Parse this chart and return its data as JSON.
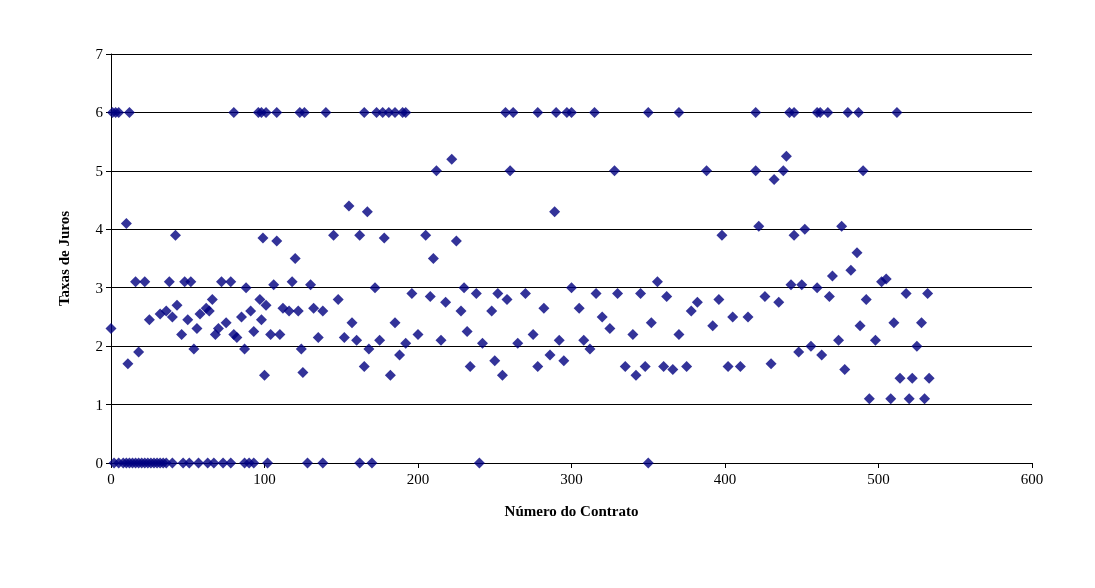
{
  "chart_data": {
    "type": "scatter",
    "xlabel": "Número do Contrato",
    "ylabel": "Taxas de Juros",
    "xlim": [
      0,
      600
    ],
    "xticks": [
      0,
      100,
      200,
      300,
      400,
      500,
      600
    ],
    "ylim": [
      0,
      7
    ],
    "yticks": [
      0,
      1,
      2,
      3,
      4,
      5,
      6,
      7
    ],
    "grid": "y",
    "marker": "diamond",
    "series": [
      {
        "color": "#000080",
        "x": [
          1,
          3,
          5,
          12,
          80,
          96,
          98,
          101,
          108,
          123,
          126,
          140,
          165,
          173,
          177,
          181,
          185,
          190,
          192,
          257,
          262,
          278,
          290,
          297,
          300,
          315,
          350,
          370,
          420,
          442,
          445,
          460,
          462,
          467,
          480,
          487,
          512,
          2,
          5,
          8,
          10,
          12,
          14,
          16,
          18,
          20,
          22,
          24,
          26,
          28,
          30,
          32,
          34,
          36,
          40,
          47,
          51,
          57,
          63,
          67,
          73,
          78,
          87,
          90,
          93,
          102,
          128,
          138,
          162,
          170,
          240,
          350,
          0,
          10,
          11,
          16,
          18,
          22,
          25,
          32,
          36,
          38,
          40,
          42,
          43,
          46,
          48,
          50,
          52,
          54,
          56,
          58,
          62,
          64,
          66,
          68,
          70,
          72,
          75,
          78,
          80,
          82,
          85,
          87,
          88,
          91,
          93,
          97,
          98,
          99,
          100,
          101,
          104,
          106,
          108,
          110,
          112,
          116,
          118,
          120,
          122,
          124,
          125,
          130,
          132,
          135,
          138,
          145,
          148,
          152,
          155,
          157,
          160,
          162,
          165,
          167,
          168,
          172,
          175,
          178,
          182,
          185,
          188,
          192,
          196,
          200,
          205,
          208,
          210,
          212,
          215,
          218,
          222,
          225,
          228,
          230,
          232,
          234,
          238,
          242,
          248,
          250,
          252,
          255,
          258,
          260,
          265,
          270,
          275,
          278,
          282,
          286,
          289,
          292,
          295,
          300,
          305,
          308,
          312,
          316,
          320,
          325,
          328,
          330,
          335,
          340,
          342,
          345,
          348,
          352,
          356,
          360,
          362,
          366,
          370,
          375,
          378,
          382,
          388,
          392,
          396,
          398,
          402,
          405,
          410,
          415,
          420,
          422,
          426,
          430,
          432,
          435,
          438,
          440,
          443,
          445,
          448,
          450,
          452,
          456,
          460,
          463,
          468,
          470,
          474,
          476,
          478,
          482,
          486,
          488,
          490,
          492,
          494,
          498,
          502,
          505,
          508,
          510,
          514,
          518,
          520,
          522,
          525,
          528,
          530,
          532,
          533
        ],
        "values": [
          6,
          6,
          6,
          6,
          6,
          6,
          6,
          6,
          6,
          6,
          6,
          6,
          6,
          6,
          6,
          6,
          6,
          6,
          6,
          6,
          6,
          6,
          6,
          6,
          6,
          6,
          6,
          6,
          6,
          6,
          6,
          6,
          6,
          6,
          6,
          6,
          6,
          0,
          0,
          0,
          0,
          0,
          0,
          0,
          0,
          0,
          0,
          0,
          0,
          0,
          0,
          0,
          0,
          0,
          0,
          0,
          0,
          0,
          0,
          0,
          0,
          0,
          0,
          0,
          0,
          0,
          0,
          0,
          0,
          0,
          0,
          0,
          2.3,
          4.1,
          1.7,
          3.1,
          1.9,
          3.1,
          2.45,
          2.55,
          2.6,
          3.1,
          2.5,
          3.9,
          2.7,
          2.2,
          3.1,
          2.45,
          3.1,
          1.95,
          2.3,
          2.55,
          2.65,
          2.6,
          2.8,
          2.2,
          2.3,
          3.1,
          2.4,
          3.1,
          2.2,
          2.15,
          2.5,
          1.95,
          3,
          2.6,
          2.25,
          2.8,
          2.45,
          3.85,
          1.5,
          2.7,
          2.2,
          3.05,
          3.8,
          2.2,
          2.65,
          2.6,
          3.1,
          3.5,
          2.6,
          1.95,
          1.55,
          3.05,
          2.65,
          2.15,
          2.6,
          3.9,
          2.8,
          2.15,
          4.4,
          2.4,
          2.1,
          3.9,
          1.65,
          4.3,
          1.95,
          3,
          2.1,
          3.85,
          1.5,
          2.4,
          1.85,
          2.05,
          2.9,
          2.2,
          3.9,
          2.85,
          3.5,
          5,
          2.1,
          2.75,
          5.2,
          3.8,
          2.6,
          3,
          2.25,
          1.65,
          2.9,
          2.05,
          2.6,
          1.75,
          2.9,
          1.5,
          2.8,
          5,
          2.05,
          2.9,
          2.2,
          1.65,
          2.65,
          1.85,
          4.3,
          2.1,
          1.75,
          3,
          2.65,
          2.1,
          1.95,
          2.9,
          2.5,
          2.3,
          5,
          2.9,
          1.65,
          2.2,
          1.5,
          2.9,
          1.65,
          2.4,
          3.1,
          1.65,
          2.85,
          1.6,
          2.2,
          1.65,
          2.6,
          2.75,
          5,
          2.35,
          2.8,
          3.9,
          1.65,
          2.5,
          1.65,
          2.5,
          5,
          4.05,
          2.85,
          1.7,
          4.85,
          2.75,
          5,
          5.25,
          3.05,
          3.9,
          1.9,
          3.05,
          4,
          2,
          3,
          1.85,
          2.85,
          3.2,
          2.1,
          4.05,
          1.6,
          3.3,
          3.6,
          2.35,
          5,
          2.8,
          1.1,
          2.1,
          3.1,
          3.15,
          1.1,
          2.4,
          1.45,
          2.9,
          1.1,
          1.45,
          2,
          2.4,
          1.1,
          2.9,
          1.45
        ]
      }
    ]
  }
}
